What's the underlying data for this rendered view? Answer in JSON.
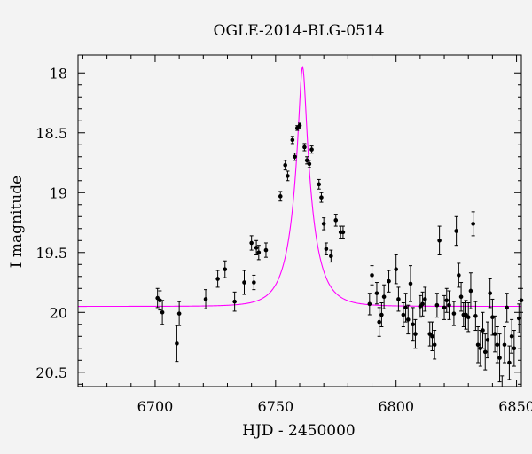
{
  "chart_data": {
    "type": "scatter",
    "title": "OGLE-2014-BLG-0514",
    "xlabel": "HJD - 2450000",
    "ylabel": "I magnitude",
    "xlim": [
      6668,
      6852
    ],
    "ylim": [
      17.85,
      20.62
    ],
    "y_inverted": true,
    "xticks": [
      6700,
      6750,
      6800,
      6850
    ],
    "yticks": [
      18,
      18.5,
      19,
      19.5,
      20,
      20.5
    ],
    "xtick_labels": [
      "6700",
      "6750",
      "6800",
      "6850"
    ],
    "ytick_labels": [
      "18",
      "18.5",
      "19",
      "19.5",
      "20",
      "20.5"
    ],
    "model_color": "#ff00ff",
    "point_color": "#000000",
    "model": {
      "t0": 6761.2,
      "u0": 0.16,
      "tE": 8.5,
      "baseline": 19.95
    },
    "series": [
      {
        "x": [
          6701,
          6702,
          6703,
          6709,
          6710,
          6721,
          6726,
          6729,
          6733,
          6737,
          6740,
          6741,
          6742,
          6743,
          6746,
          6752,
          6754,
          6755,
          6757,
          6758,
          6759,
          6760,
          6762,
          6763,
          6764,
          6765,
          6768,
          6769,
          6770,
          6771,
          6773,
          6775,
          6777,
          6778,
          6789,
          6790,
          6792,
          6793,
          6794,
          6795,
          6797,
          6800,
          6801,
          6803,
          6804,
          6805,
          6806,
          6807,
          6808,
          6810,
          6811,
          6812,
          6814,
          6815,
          6816,
          6817,
          6818,
          6820,
          6821,
          6822,
          6824,
          6825,
          6826,
          6827,
          6828,
          6829,
          6830,
          6831,
          6832,
          6833,
          6834,
          6835,
          6836,
          6837,
          6838,
          6839,
          6840,
          6841,
          6842,
          6843,
          6844,
          6845,
          6846,
          6847,
          6848,
          6849,
          6851,
          6852
        ],
        "y": [
          19.88,
          19.9,
          20.0,
          20.26,
          20.01,
          19.89,
          19.72,
          19.64,
          19.91,
          19.75,
          19.42,
          19.75,
          19.46,
          19.5,
          19.48,
          19.03,
          18.77,
          18.86,
          18.56,
          18.7,
          18.46,
          18.44,
          18.62,
          18.73,
          18.76,
          18.64,
          18.93,
          19.04,
          19.26,
          19.47,
          19.53,
          19.23,
          19.33,
          19.33,
          19.93,
          19.69,
          19.84,
          20.08,
          20.02,
          19.87,
          19.74,
          19.64,
          19.89,
          20.02,
          19.96,
          20.06,
          19.76,
          20.1,
          20.18,
          19.95,
          19.93,
          19.89,
          20.18,
          20.2,
          20.27,
          19.94,
          19.4,
          19.96,
          19.9,
          19.94,
          20.01,
          19.32,
          19.69,
          19.87,
          20.02,
          20.02,
          20.04,
          19.82,
          19.26,
          20.03,
          20.27,
          20.3,
          20.15,
          20.33,
          20.23,
          19.84,
          20.04,
          20.18,
          20.27,
          20.38,
          20.65,
          20.27,
          19.96,
          20.42,
          20.2,
          20.3,
          20.05,
          19.9
        ],
        "err": [
          0.08,
          0.08,
          0.1,
          0.15,
          0.1,
          0.08,
          0.07,
          0.07,
          0.08,
          0.1,
          0.06,
          0.06,
          0.06,
          0.06,
          0.06,
          0.04,
          0.04,
          0.04,
          0.03,
          0.03,
          0.02,
          0.02,
          0.03,
          0.03,
          0.03,
          0.03,
          0.04,
          0.04,
          0.05,
          0.05,
          0.05,
          0.05,
          0.05,
          0.05,
          0.09,
          0.08,
          0.09,
          0.12,
          0.1,
          0.1,
          0.09,
          0.12,
          0.1,
          0.1,
          0.12,
          0.12,
          0.15,
          0.14,
          0.12,
          0.09,
          0.1,
          0.1,
          0.1,
          0.12,
          0.12,
          0.1,
          0.12,
          0.1,
          0.1,
          0.12,
          0.1,
          0.12,
          0.1,
          0.12,
          0.1,
          0.12,
          0.12,
          0.15,
          0.1,
          0.12,
          0.15,
          0.15,
          0.15,
          0.15,
          0.15,
          0.12,
          0.15,
          0.15,
          0.15,
          0.2,
          0.12,
          0.15,
          0.12,
          0.14,
          0.14,
          0.15,
          0.12,
          0.1
        ]
      }
    ],
    "grid": false
  }
}
